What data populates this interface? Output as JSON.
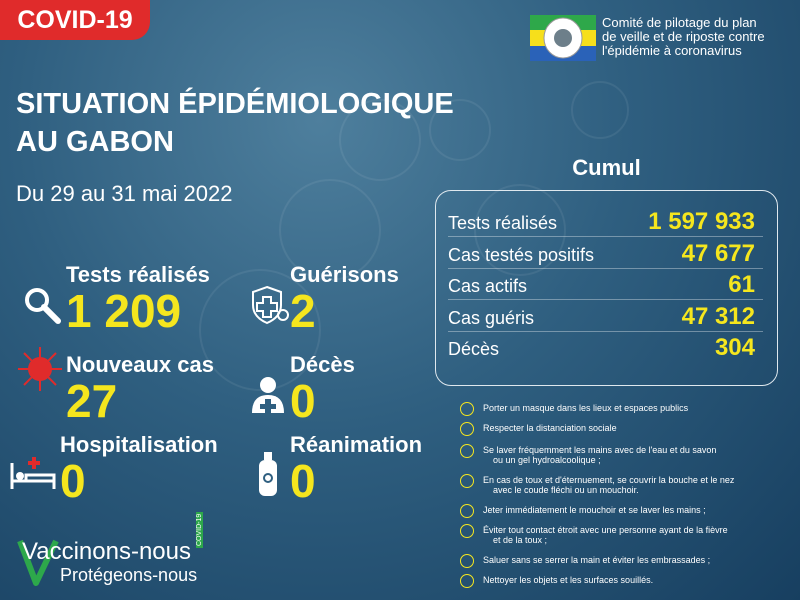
{
  "badge": "COVID-19",
  "header": {
    "org_lines": [
      "Comité de pilotage du plan",
      "de veille et de riposte contre",
      "l'épidémie à coronavirus"
    ]
  },
  "title_lines": [
    "SITUATION ÉPIDÉMIOLOGIQUE",
    "AU GABON"
  ],
  "period": "Du 29 au 31 mai  2022",
  "stats": [
    {
      "label": "Tests réalisés",
      "value": "1 209"
    },
    {
      "label": "Guérisons",
      "value": "2"
    },
    {
      "label": "Nouveaux cas",
      "value": "27"
    },
    {
      "label": "Décès",
      "value": "0"
    },
    {
      "label": "Hospitalisation",
      "value": "0"
    },
    {
      "label": "Réanimation",
      "value": "0"
    }
  ],
  "cumul": {
    "title": "Cumul",
    "rows": [
      [
        "Tests réalisés",
        "1 597 933"
      ],
      [
        "Cas testés positifs",
        "47 677"
      ],
      [
        "Cas actifs",
        "61"
      ],
      [
        "Cas guéris",
        "47 312"
      ],
      [
        "Décès",
        "304"
      ]
    ]
  },
  "advice": [
    [
      "Porter un masque dans les lieux et espaces publics"
    ],
    [
      "Respecter la distanciation sociale"
    ],
    [
      "Se laver fréquemment les mains avec de l'eau et du savon",
      "ou un gel hydroalcoolique ;"
    ],
    [
      "En cas de toux et d'éternuement, se couvrir la bouche et le nez",
      "avec le coude fléchi ou un mouchoir."
    ],
    [
      "Jeter immédiatement le mouchoir et se laver les mains ;"
    ],
    [
      "Éviter tout contact étroit avec une personne ayant de la fièvre",
      "et de la toux ;"
    ],
    [
      "Saluer sans se serrer la main et éviter les embrassades ;"
    ],
    [
      "Nettoyer les objets et les surfaces souillés."
    ]
  ],
  "campaign": {
    "line1": "Vaccinons-nous",
    "line2": "Protégeons-nous",
    "tag": "COVID-19"
  }
}
